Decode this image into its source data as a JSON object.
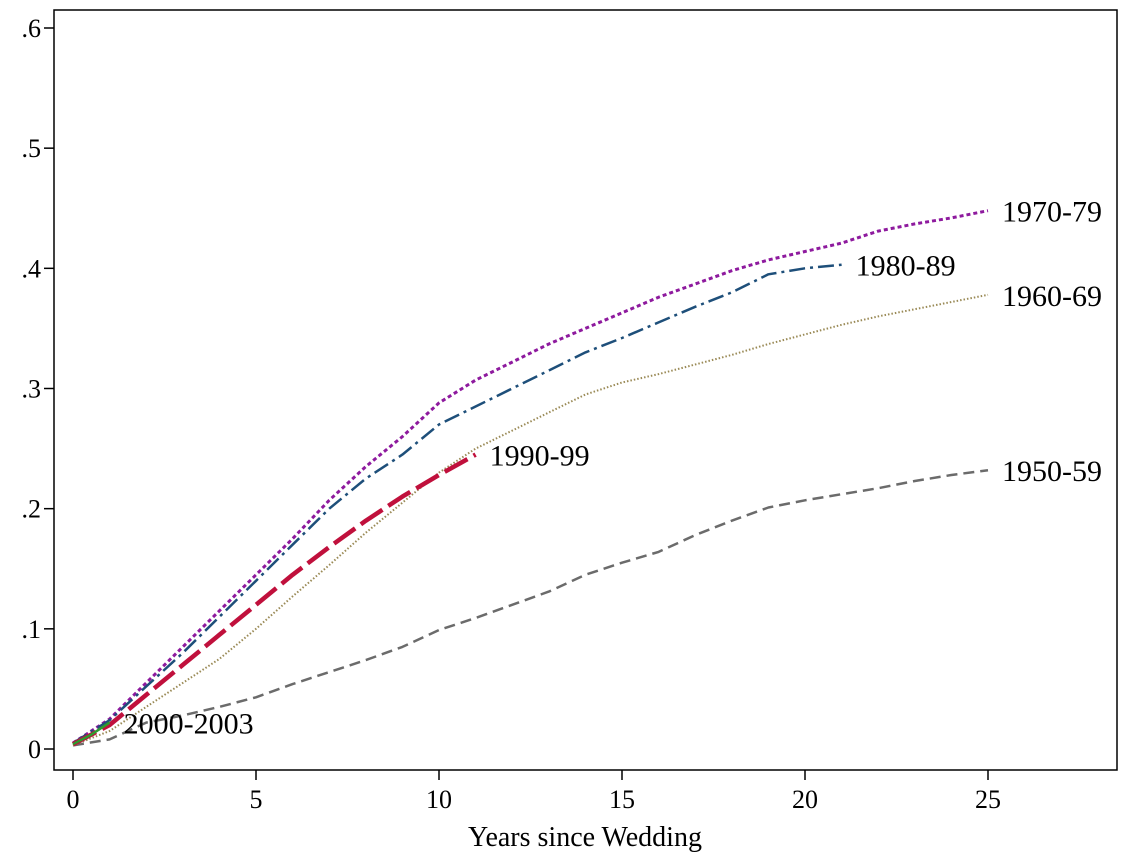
{
  "chart_data": {
    "type": "line",
    "title": "",
    "xlabel": "Years since Wedding",
    "ylabel": "",
    "xlim": [
      0,
      28
    ],
    "ylim": [
      0,
      0.6
    ],
    "xticks": [
      0,
      5,
      10,
      15,
      20,
      25
    ],
    "xtick_labels": [
      "0",
      "5",
      "10",
      "15",
      "20",
      "25"
    ],
    "yticks": [
      0,
      0.1,
      0.2,
      0.3,
      0.4,
      0.5,
      0.6
    ],
    "ytick_labels": [
      "0",
      ".1",
      ".2",
      ".3",
      ".4",
      ".5",
      ".6"
    ],
    "grid": false,
    "legend": "none",
    "series": [
      {
        "name": "1950-59",
        "color": "#6b6b6b",
        "dash": "short-dash",
        "x": [
          0,
          1,
          2,
          3,
          4,
          5,
          6,
          7,
          8,
          9,
          10,
          11,
          12,
          13,
          14,
          15,
          16,
          17,
          18,
          19,
          20,
          21,
          22,
          23,
          24,
          25
        ],
        "y": [
          0.003,
          0.008,
          0.022,
          0.028,
          0.035,
          0.043,
          0.054,
          0.064,
          0.074,
          0.085,
          0.099,
          0.109,
          0.12,
          0.131,
          0.145,
          0.155,
          0.164,
          0.178,
          0.19,
          0.201,
          0.207,
          0.212,
          0.217,
          0.223,
          0.228,
          0.232
        ]
      },
      {
        "name": "1960-69",
        "color": "#9a8a56",
        "dash": "dotted",
        "x": [
          0,
          1,
          2,
          3,
          4,
          5,
          6,
          7,
          8,
          9,
          10,
          11,
          12,
          13,
          14,
          15,
          16,
          17,
          18,
          19,
          20,
          21,
          22,
          23,
          24,
          25
        ],
        "y": [
          0.003,
          0.015,
          0.035,
          0.055,
          0.075,
          0.1,
          0.127,
          0.153,
          0.18,
          0.205,
          0.23,
          0.25,
          0.265,
          0.28,
          0.295,
          0.305,
          0.312,
          0.32,
          0.328,
          0.337,
          0.345,
          0.353,
          0.36,
          0.366,
          0.372,
          0.378
        ]
      },
      {
        "name": "1970-79",
        "color": "#8e1a9e",
        "dash": "dense-dot",
        "x": [
          0,
          1,
          2,
          3,
          4,
          5,
          6,
          7,
          8,
          9,
          10,
          11,
          12,
          13,
          14,
          15,
          16,
          17,
          18,
          19,
          20,
          21,
          22,
          23,
          24,
          25
        ],
        "y": [
          0.005,
          0.025,
          0.055,
          0.085,
          0.115,
          0.145,
          0.175,
          0.207,
          0.235,
          0.26,
          0.288,
          0.307,
          0.322,
          0.337,
          0.35,
          0.363,
          0.376,
          0.387,
          0.398,
          0.407,
          0.414,
          0.421,
          0.431,
          0.437,
          0.442,
          0.448
        ]
      },
      {
        "name": "1980-89",
        "color": "#1e4f7a",
        "dash": "dash-dot",
        "x": [
          0,
          1,
          2,
          3,
          4,
          5,
          6,
          7,
          8,
          9,
          10,
          11,
          12,
          13,
          14,
          15,
          16,
          17,
          18,
          19,
          20,
          21
        ],
        "y": [
          0.005,
          0.024,
          0.052,
          0.08,
          0.11,
          0.14,
          0.17,
          0.2,
          0.225,
          0.245,
          0.27,
          0.285,
          0.3,
          0.315,
          0.33,
          0.342,
          0.355,
          0.368,
          0.38,
          0.395,
          0.4,
          0.403
        ]
      },
      {
        "name": "1990-99",
        "color": "#c0103c",
        "dash": "long-dash",
        "x": [
          0,
          1,
          2,
          3,
          4,
          5,
          6,
          7,
          8,
          9,
          10,
          11
        ],
        "y": [
          0.004,
          0.02,
          0.045,
          0.07,
          0.095,
          0.12,
          0.145,
          0.168,
          0.19,
          0.21,
          0.228,
          0.245
        ]
      },
      {
        "name": "2000-2003",
        "color": "#2e9a2e",
        "dash": "solid",
        "x": [
          0,
          0.5,
          1
        ],
        "y": [
          0.004,
          0.012,
          0.022
        ]
      }
    ]
  }
}
